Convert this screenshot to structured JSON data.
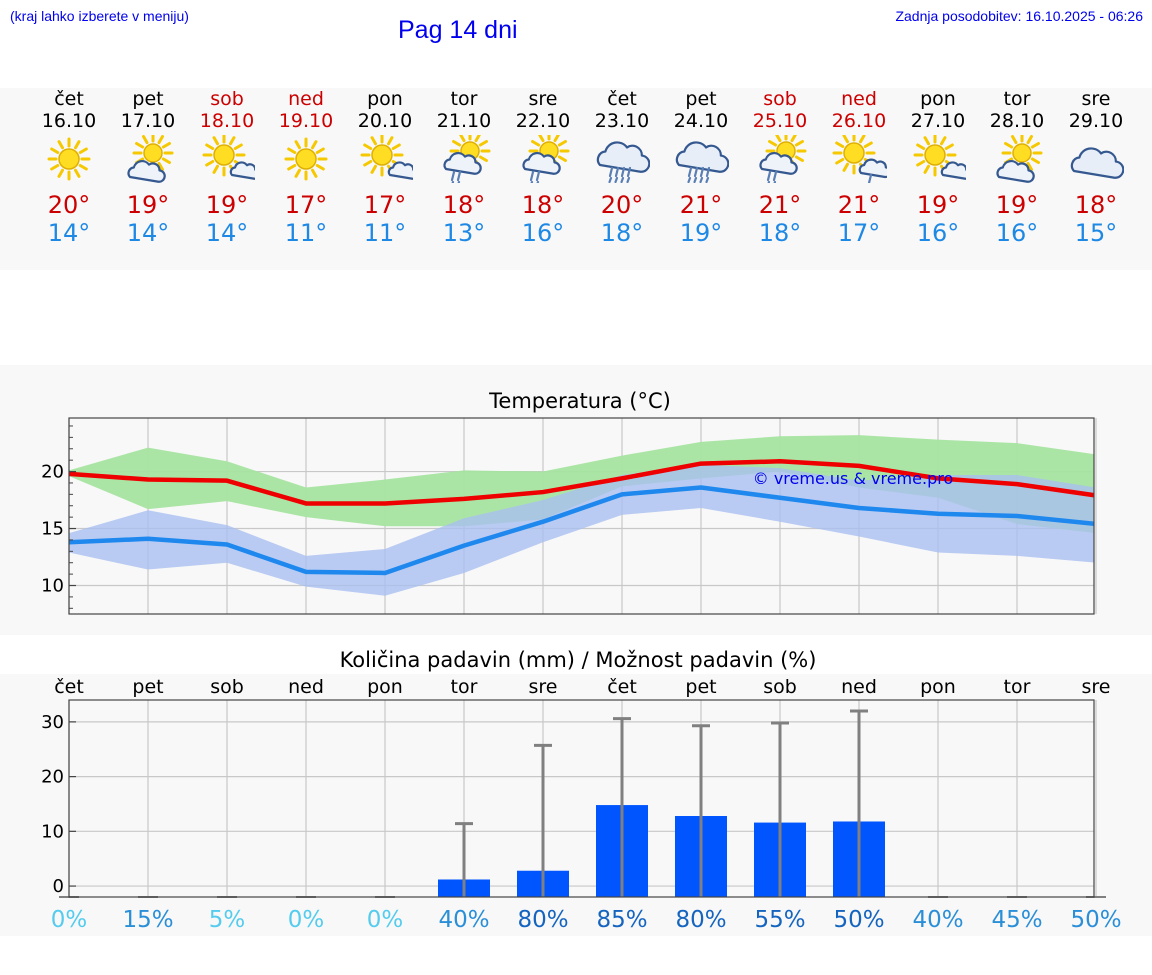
{
  "header": {
    "hint": "(kraj lahko izberete v meniju)",
    "title": "Pag 14 dni",
    "updated": "Zadnja posodobitev: 16.10.2025 - 06:26"
  },
  "colors": {
    "link": "#0000ee",
    "tmax": "#cc0000",
    "tmin": "#1e88e5",
    "max_band": "#a6e4a0",
    "min_band": "#a9bff0",
    "overlap_band": "#7cc4a8",
    "max_line": "#ee0000",
    "min_line": "#1e88ee",
    "bar": "#0055ff",
    "errorbar": "#808080"
  },
  "days": [
    {
      "name": "čet",
      "date": "16.10",
      "icon": "sun-icon",
      "tmax": "20°",
      "tmin": "14°",
      "weekend": false
    },
    {
      "name": "pet",
      "date": "17.10",
      "icon": "sun-cloud-icon",
      "tmax": "19°",
      "tmin": "14°",
      "weekend": false
    },
    {
      "name": "sob",
      "date": "18.10",
      "icon": "sun-small-cloud-icon",
      "tmax": "19°",
      "tmin": "14°",
      "weekend": true
    },
    {
      "name": "ned",
      "date": "19.10",
      "icon": "sun-icon",
      "tmax": "17°",
      "tmin": "11°",
      "weekend": true
    },
    {
      "name": "pon",
      "date": "20.10",
      "icon": "sun-small-cloud-icon",
      "tmax": "17°",
      "tmin": "11°",
      "weekend": false
    },
    {
      "name": "tor",
      "date": "21.10",
      "icon": "sun-rain-icon",
      "tmax": "18°",
      "tmin": "13°",
      "weekend": false
    },
    {
      "name": "sre",
      "date": "22.10",
      "icon": "sun-rain-icon",
      "tmax": "18°",
      "tmin": "16°",
      "weekend": false
    },
    {
      "name": "čet",
      "date": "23.10",
      "icon": "heavy-rain-icon",
      "tmax": "20°",
      "tmin": "18°",
      "weekend": false
    },
    {
      "name": "pet",
      "date": "24.10",
      "icon": "heavy-rain-icon",
      "tmax": "21°",
      "tmin": "19°",
      "weekend": false
    },
    {
      "name": "sob",
      "date": "25.10",
      "icon": "sun-rain-icon",
      "tmax": "21°",
      "tmin": "18°",
      "weekend": true
    },
    {
      "name": "ned",
      "date": "26.10",
      "icon": "sun-cloud-light-rain-icon",
      "tmax": "21°",
      "tmin": "17°",
      "weekend": true
    },
    {
      "name": "pon",
      "date": "27.10",
      "icon": "sun-small-cloud-icon",
      "tmax": "19°",
      "tmin": "16°",
      "weekend": false
    },
    {
      "name": "tor",
      "date": "28.10",
      "icon": "sun-cloud-icon",
      "tmax": "19°",
      "tmin": "16°",
      "weekend": false
    },
    {
      "name": "sre",
      "date": "29.10",
      "icon": "cloudy-icon",
      "tmax": "18°",
      "tmin": "15°",
      "weekend": false
    }
  ],
  "chart_data": [
    {
      "type": "line",
      "title": "Temperatura (°C)",
      "xlabel": "",
      "ylabel": "",
      "x": [
        "16.10",
        "17.10",
        "18.10",
        "19.10",
        "20.10",
        "21.10",
        "22.10",
        "23.10",
        "24.10",
        "25.10",
        "26.10",
        "27.10",
        "28.10",
        "29.10"
      ],
      "ylim": [
        7.5,
        24.7
      ],
      "yticks": [
        10,
        15,
        20
      ],
      "grid": true,
      "watermark": "© vreme.us & vreme.pro",
      "series": [
        {
          "values": [
            19.8,
            19.3,
            19.2,
            17.2,
            17.2,
            17.6,
            18.2,
            19.4,
            20.7,
            20.9,
            20.5,
            19.4,
            18.9,
            17.9
          ],
          "band_low": [
            19.6,
            16.7,
            17.4,
            16.0,
            15.2,
            15.2,
            15.8,
            18.7,
            19.4,
            20.0,
            18.6,
            17.7,
            15.4,
            14.6
          ],
          "band_high": [
            20.1,
            22.1,
            20.9,
            18.6,
            19.3,
            20.1,
            20.0,
            21.4,
            22.6,
            23.1,
            23.2,
            22.8,
            22.5,
            21.5
          ]
        },
        {
          "values": [
            13.8,
            14.1,
            13.6,
            11.2,
            11.1,
            13.5,
            15.6,
            18.0,
            18.6,
            17.7,
            16.8,
            16.3,
            16.1,
            15.4
          ],
          "band_low": [
            12.9,
            11.4,
            12.0,
            9.9,
            9.1,
            11.1,
            13.8,
            16.2,
            16.8,
            15.6,
            14.3,
            12.9,
            12.6,
            12.0
          ],
          "band_high": [
            14.6,
            16.6,
            15.3,
            12.6,
            13.2,
            15.9,
            17.5,
            19.7,
            20.6,
            20.3,
            19.2,
            19.7,
            19.7,
            18.6
          ]
        }
      ]
    },
    {
      "type": "bar",
      "title": "Količina padavin (mm) / Možnost padavin (%)",
      "xlabel": "",
      "ylabel": "",
      "categories": [
        "čet",
        "pet",
        "sob",
        "ned",
        "pon",
        "tor",
        "sre",
        "čet",
        "pet",
        "sob",
        "ned",
        "pon",
        "tor",
        "sre"
      ],
      "ylim": [
        -2,
        34
      ],
      "yticks": [
        0,
        10,
        20,
        30
      ],
      "grid": true,
      "values": [
        0,
        0,
        0,
        0,
        0,
        1.2,
        2.8,
        14.8,
        12.8,
        11.6,
        11.8,
        0,
        0,
        0
      ],
      "error_high": [
        0,
        0,
        0,
        0,
        0,
        11.4,
        25.7,
        30.6,
        29.3,
        29.8,
        32.0,
        0,
        0,
        0
      ],
      "probability": [
        "0%",
        "15%",
        "5%",
        "0%",
        "0%",
        "40%",
        "80%",
        "85%",
        "80%",
        "55%",
        "50%",
        "40%",
        "45%",
        "50%"
      ],
      "probability_colors": [
        "#55ccee",
        "#2b8fd8",
        "#55ccee",
        "#55ccee",
        "#55ccee",
        "#2b8fd8",
        "#1565c0",
        "#1565c0",
        "#1565c0",
        "#1565c0",
        "#1565c0",
        "#2b8fd8",
        "#2b8fd8",
        "#2b8fd8"
      ]
    }
  ]
}
